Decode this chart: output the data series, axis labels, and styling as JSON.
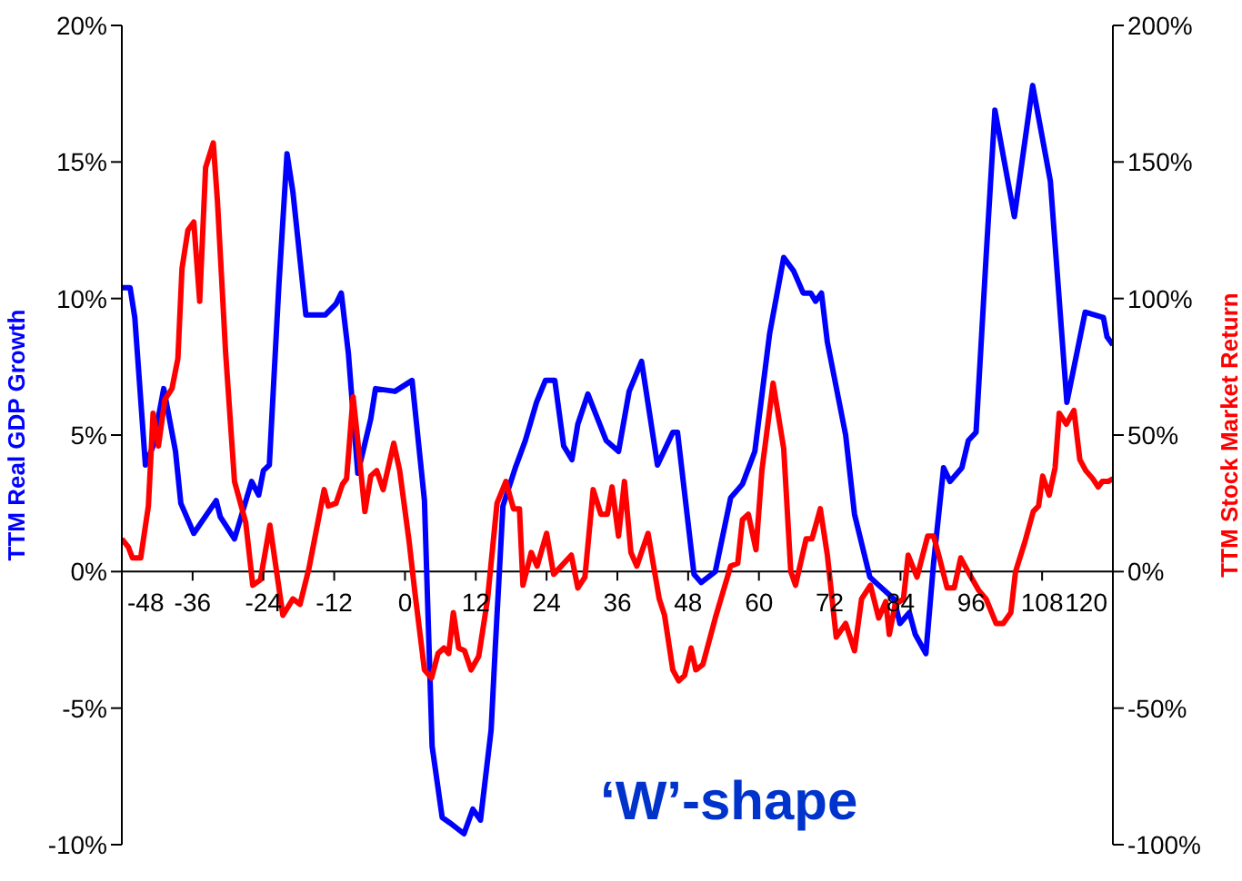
{
  "chart_data": {
    "type": "line",
    "ylabel": "TTM Real GDP Growth",
    "y2label": "TTM Stock Market Return",
    "annotations": [
      "‘W’-shape"
    ],
    "xlim": [
      -48,
      120
    ],
    "xticks": [
      -48,
      -36,
      -24,
      -12,
      0,
      12,
      24,
      36,
      48,
      60,
      72,
      84,
      96,
      108,
      120
    ],
    "ylim": [
      -10,
      20
    ],
    "yticks": [
      {
        "value": -10,
        "label": "-10%"
      },
      {
        "value": -5,
        "label": "-5%"
      },
      {
        "value": 0,
        "label": "0%"
      },
      {
        "value": 5,
        "label": "5%"
      },
      {
        "value": 10,
        "label": "10%"
      },
      {
        "value": 15,
        "label": "15%"
      },
      {
        "value": 20,
        "label": "20%"
      }
    ],
    "y2lim": [
      -100,
      200
    ],
    "y2ticks": [
      {
        "value": -100,
        "label": "-100%"
      },
      {
        "value": -50,
        "label": "-50%"
      },
      {
        "value": 0,
        "label": "0%"
      },
      {
        "value": 50,
        "label": "50%"
      },
      {
        "value": 100,
        "label": "100%"
      },
      {
        "value": 150,
        "label": "150%"
      },
      {
        "value": 200,
        "label": "200%"
      }
    ],
    "grid": false,
    "legend": false,
    "marker": "none",
    "line_style": "solid",
    "series": [
      {
        "color": "#0000ff",
        "x": [
          -48,
          -46.6,
          -45.8,
          -44,
          -42.7,
          -40.9,
          -38.9,
          -38,
          -35.8,
          -32,
          -31.3,
          -28.9,
          -26,
          -24.8,
          -24,
          -23,
          -21.4,
          -20,
          -19,
          -16.8,
          -13.5,
          -11.7,
          -10.8,
          -9.6,
          -8,
          -5.8,
          -5,
          -1.7,
          1.2,
          3.3,
          4.6,
          6.3,
          7.6,
          10,
          11.5,
          12.8,
          14.6,
          15.3,
          16.6,
          18.7,
          20.4,
          22.3,
          23.8,
          25.4,
          26.9,
          28.3,
          29.3,
          31,
          34.1,
          36.2,
          38,
          40.1,
          42.8,
          45.4,
          46.2,
          49,
          50.2,
          52.6,
          55.2,
          57.2,
          59.3,
          61.8,
          64.2,
          65.9,
          67.5,
          68.8,
          69.6,
          70.6,
          71.6,
          74.7,
          76.2,
          78.8,
          80.3,
          82.9,
          83.9,
          85.5,
          86.5,
          88.3,
          89.6,
          91.3,
          92.4,
          94.4,
          95.5,
          96.8,
          98.5,
          100,
          103.3,
          106.4,
          109.4,
          112.2,
          115.3,
          118.4,
          119,
          120
        ],
        "values": [
          10.4,
          10.4,
          9.3,
          3.9,
          4.6,
          6.7,
          4.4,
          2.5,
          1.4,
          2.6,
          2.0,
          1.2,
          3.3,
          2.8,
          3.7,
          3.9,
          10.4,
          15.3,
          13.9,
          9.4,
          9.4,
          9.8,
          10.2,
          8.0,
          3.6,
          5.6,
          6.7,
          6.6,
          7.0,
          2.6,
          -6.4,
          -9.0,
          -9.2,
          -9.6,
          -8.7,
          -9.1,
          -5.8,
          -2.8,
          2.4,
          3.8,
          4.8,
          6.2,
          7.0,
          7.0,
          4.6,
          4.1,
          5.4,
          6.5,
          4.8,
          4.4,
          6.6,
          7.7,
          3.9,
          5.1,
          5.1,
          -0.1,
          -0.4,
          0.0,
          2.7,
          3.2,
          4.4,
          8.7,
          11.5,
          11.0,
          10.2,
          10.2,
          9.9,
          10.2,
          8.4,
          5.0,
          2.1,
          -0.2,
          -0.5,
          -1.0,
          -1.9,
          -1.5,
          -2.3,
          -3.0,
          0.3,
          3.8,
          3.3,
          3.8,
          4.8,
          5.1,
          11.5,
          16.9,
          13.0,
          17.8,
          14.3,
          6.2,
          9.5,
          9.3,
          8.6,
          8.3
        ]
      },
      {
        "color": "#ff0000",
        "axis": "y2",
        "x": [
          -48,
          -46.9,
          -46.2,
          -44.8,
          -43.5,
          -42.7,
          -41.8,
          -40.7,
          -39.5,
          -38.5,
          -37.8,
          -36.8,
          -35.8,
          -34.8,
          -33.8,
          -32.5,
          -31.8,
          -30.4,
          -28.9,
          -27,
          -25.8,
          -24.5,
          -22.9,
          -20.7,
          -19,
          -17.8,
          -16.3,
          -13.7,
          -13,
          -11.7,
          -10.6,
          -9.9,
          -8.8,
          -8.1,
          -6.8,
          -5.8,
          -4.8,
          -3.7,
          -1.9,
          -0.9,
          0.7,
          1.7,
          3.3,
          4.5,
          5.6,
          6.6,
          7.4,
          8.2,
          9.1,
          10.1,
          11.2,
          12.5,
          14,
          15.6,
          17.1,
          18.4,
          19.4,
          20,
          21.4,
          22.4,
          24,
          25.2,
          28.2,
          29.3,
          30.5,
          31.9,
          33.2,
          34.3,
          35.1,
          36.2,
          37.2,
          38.3,
          39.3,
          41.2,
          43.1,
          44,
          45.4,
          46.4,
          47.4,
          48.5,
          49.3,
          50.5,
          52.6,
          55.2,
          56.4,
          57.2,
          58.2,
          59.5,
          60.5,
          62.4,
          64.2,
          65.4,
          66.2,
          68,
          69,
          70.4,
          71.6,
          73.1,
          74.7,
          76.2,
          77.4,
          78.9,
          80.3,
          81.5,
          82.1,
          83.1,
          84.5,
          85.3,
          86.8,
          88.6,
          89.6,
          90.6,
          91.9,
          93.1,
          94.2,
          95.7,
          97.3,
          98.5,
          100.2,
          101.4,
          102.7,
          103.5,
          105.1,
          106.5,
          107.4,
          108.1,
          109.2,
          110.2,
          110.9,
          112.1,
          113.4,
          114.4,
          115.4,
          116.6,
          117.5,
          118.2,
          119.2,
          120
        ],
        "values": [
          12,
          9,
          5,
          5,
          24,
          58,
          46,
          63,
          67,
          78,
          111,
          125,
          128,
          99,
          148,
          157,
          136,
          80,
          33,
          18,
          -5,
          -3,
          17,
          -16,
          -10,
          -12,
          1,
          30,
          24,
          25,
          32,
          34,
          64,
          50,
          22,
          35,
          37,
          30,
          47,
          37,
          11,
          -8,
          -36,
          -39,
          -30,
          -28,
          -30,
          -15,
          -28,
          -29,
          -36,
          -31,
          -10,
          25,
          33,
          23,
          23,
          -5,
          7,
          2,
          14,
          -1,
          6,
          -6,
          -2,
          30,
          21,
          21,
          31,
          13,
          33,
          7,
          2,
          14,
          -10,
          -16,
          -36,
          -40,
          -38,
          -28,
          -36,
          -34,
          -17,
          2,
          3,
          19,
          21,
          8,
          37,
          69,
          45,
          0,
          -5,
          12,
          12,
          23,
          6,
          -24,
          -19,
          -29,
          -10,
          -5,
          -17,
          -11,
          -23,
          -12,
          -10,
          6,
          -2,
          13,
          13,
          5,
          -6,
          -6,
          5,
          -1,
          -7,
          -10,
          -19,
          -19,
          -15,
          0,
          11,
          22,
          24,
          35,
          28,
          38,
          58,
          54,
          59,
          41,
          37,
          34,
          31,
          33,
          33,
          34
        ]
      }
    ]
  }
}
